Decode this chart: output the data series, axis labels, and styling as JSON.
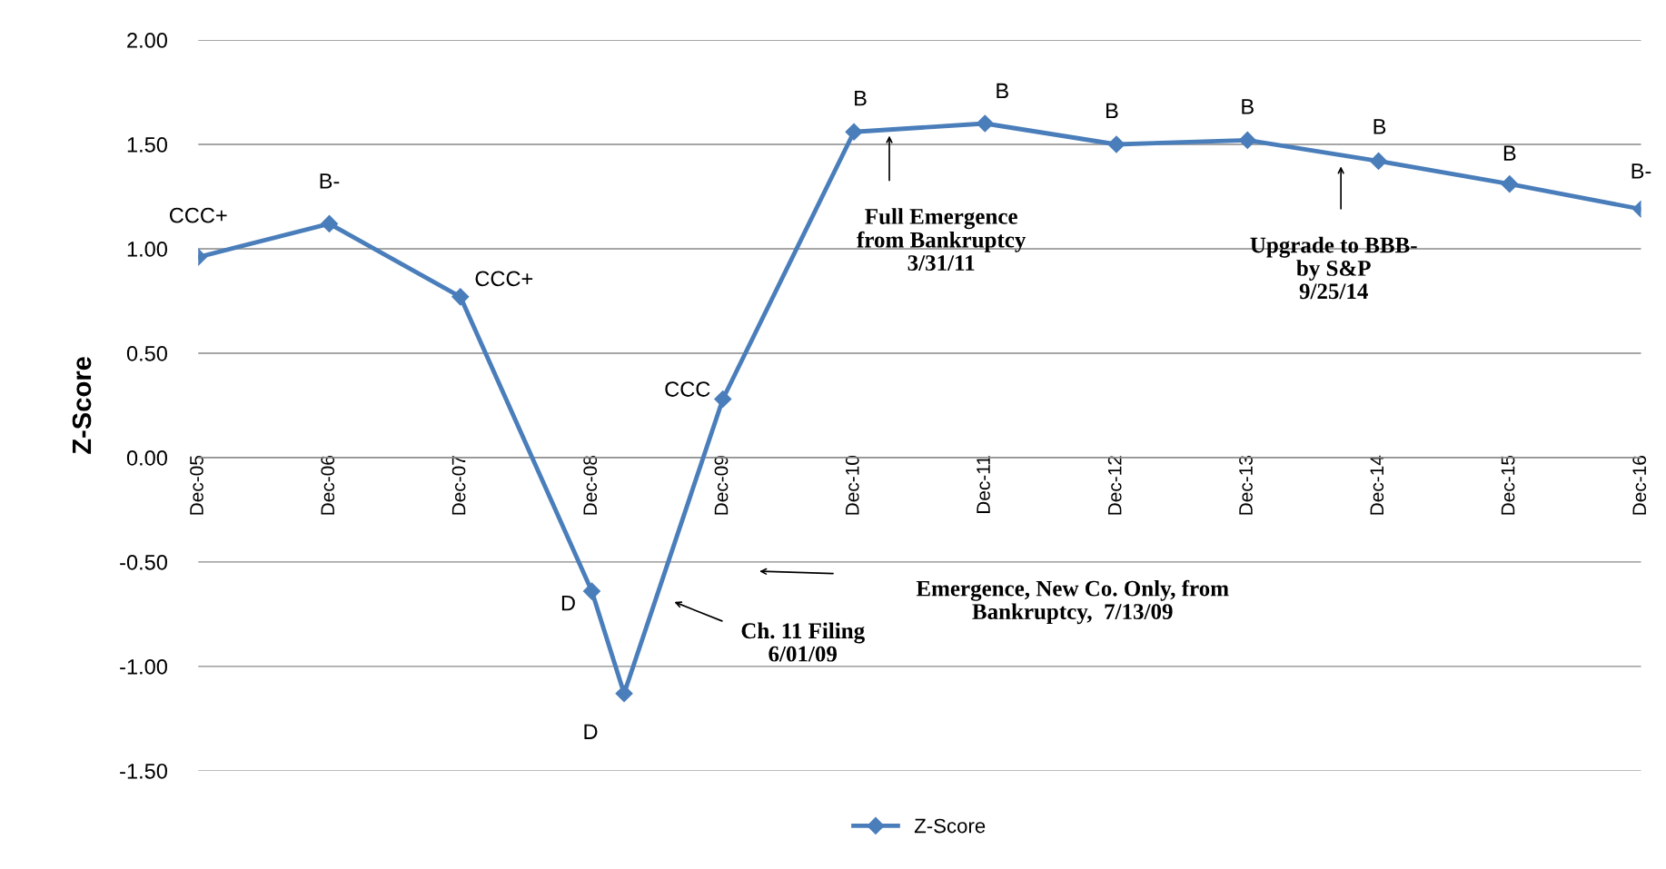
{
  "chart_data": {
    "type": "line",
    "ylabel": "Z-Score",
    "x": [
      "2005-12",
      "2006-12",
      "2007-12",
      "2008-12",
      "2009-03",
      "2009-12",
      "2010-12",
      "2011-12",
      "2012-12",
      "2013-12",
      "2014-12",
      "2015-12",
      "2016-12"
    ],
    "series": [
      {
        "name": "Z-Score",
        "color": "#4a7ebb",
        "values": [
          0.96,
          1.12,
          0.77,
          -0.64,
          -1.13,
          0.28,
          1.56,
          1.6,
          1.5,
          1.52,
          1.42,
          1.31,
          1.19
        ]
      }
    ],
    "xlim": [
      "2005-12",
      "2016-12"
    ],
    "xticks": [
      {
        "value": "2005-12",
        "label": "Dec-05"
      },
      {
        "value": "2006-12",
        "label": "Dec-06"
      },
      {
        "value": "2007-12",
        "label": "Dec-07"
      },
      {
        "value": "2008-12",
        "label": "Dec-08"
      },
      {
        "value": "2009-12",
        "label": "Dec-09"
      },
      {
        "value": "2010-12",
        "label": "Dec-10"
      },
      {
        "value": "2011-12",
        "label": "Dec-11"
      },
      {
        "value": "2012-12",
        "label": "Dec-12"
      },
      {
        "value": "2013-12",
        "label": "Dec-13"
      },
      {
        "value": "2014-12",
        "label": "Dec-14"
      },
      {
        "value": "2015-12",
        "label": "Dec-15"
      },
      {
        "value": "2016-12",
        "label": "Dec-16"
      }
    ],
    "ylim": [
      -1.5,
      2.0
    ],
    "yticks": [
      {
        "value": -1.5,
        "label": "-1.50"
      },
      {
        "value": -1.0,
        "label": "-1.00"
      },
      {
        "value": -0.5,
        "label": "-0.50"
      },
      {
        "value": 0,
        "label": "0.00"
      },
      {
        "value": 0.5,
        "label": "0.50"
      },
      {
        "value": 1.0,
        "label": "1.00"
      },
      {
        "value": 1.5,
        "label": "1.50"
      },
      {
        "value": 2.0,
        "label": "2.00"
      }
    ],
    "grid": "y",
    "legend": "bottom",
    "marker": "diamond",
    "line_style": "solid",
    "annotations": [
      {
        "text": "CCC+",
        "x": "2005-12",
        "y": 0.96
      },
      {
        "text": "B-",
        "x": "2006-12",
        "y": 1.12
      },
      {
        "text": "CCC+",
        "x": "2007-12",
        "y": 0.77
      },
      {
        "text": "D",
        "x": "2008-12",
        "y": -0.64
      },
      {
        "text": "D",
        "x": "2009-03",
        "y": -1.13
      },
      {
        "text": "CCC",
        "x": "2009-12",
        "y": 0.28
      },
      {
        "text": "B",
        "x": "2010-12",
        "y": 1.56
      },
      {
        "text": "B",
        "x": "2011-12",
        "y": 1.6
      },
      {
        "text": "B",
        "x": "2012-12",
        "y": 1.5
      },
      {
        "text": "B",
        "x": "2013-12",
        "y": 1.52
      },
      {
        "text": "B",
        "x": "2014-12",
        "y": 1.42
      },
      {
        "text": "B",
        "x": "2015-12",
        "y": 1.31
      },
      {
        "text": "B-",
        "x": "2016-12",
        "y": 1.19
      },
      "Full Emergence\nfrom Bankruptcy\n3/31/11",
      "Upgrade to BBB-\nby S&P\n9/25/14",
      "Ch. 11 Filing\n6/01/09",
      "Emergence, New Co. Only, from\nBankruptcy,  7/13/09"
    ]
  }
}
